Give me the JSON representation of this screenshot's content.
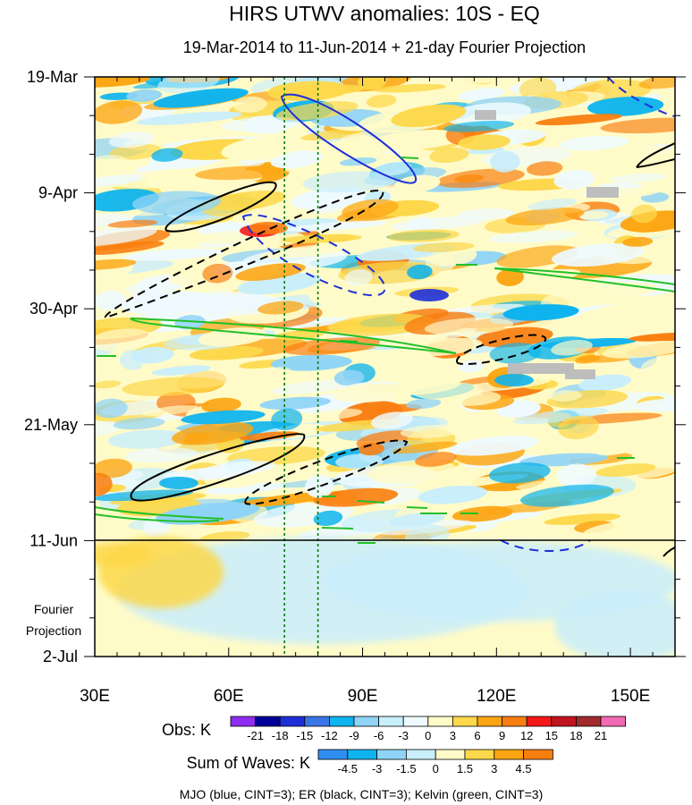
{
  "chart_data": {
    "type": "heatmap",
    "title": "HIRS UTWV anomalies: 10S - EQ",
    "subtitle": "19-Mar-2014 to 11-Jun-2014 + 21-day Fourier Projection",
    "x_ticks": [
      {
        "value": 30,
        "label": "30E"
      },
      {
        "value": 60,
        "label": "60E"
      },
      {
        "value": 90,
        "label": "90E"
      },
      {
        "value": 120,
        "label": "120E"
      },
      {
        "value": 150,
        "label": "150E"
      }
    ],
    "x_range": [
      30,
      160
    ],
    "y_ticks": [
      {
        "value": 0,
        "label": "19-Mar"
      },
      {
        "value": 21,
        "label": "9-Apr"
      },
      {
        "value": 42,
        "label": "30-Apr"
      },
      {
        "value": 63,
        "label": "21-May"
      },
      {
        "value": 84,
        "label": "11-Jun"
      },
      {
        "value": 105,
        "label": "2-Jul"
      }
    ],
    "y_range_days": [
      0,
      105
    ],
    "projection_label": [
      "Fourier",
      "Projection"
    ],
    "projection_start_day": 84,
    "reference_lines_lon": [
      72.5,
      80
    ],
    "obs_colorbar": {
      "label": "Obs: K",
      "levels": [
        -21,
        -18,
        -15,
        -12,
        -9,
        -6,
        -3,
        0,
        3,
        6,
        9,
        12,
        15,
        18,
        21
      ],
      "colors": [
        "#8f2cf0",
        "#000099",
        "#1f2fd8",
        "#3a75e6",
        "#0fb4ee",
        "#8fd3f7",
        "#c9eefc",
        "#eefaff",
        "#fffbc8",
        "#fdd84a",
        "#fca512",
        "#f97e10",
        "#f51818",
        "#c0151f",
        "#a12a2a",
        "#f26ab3"
      ]
    },
    "waves_colorbar": {
      "label": "Sum of Waves: K",
      "levels": [
        -4.5,
        -3,
        -1.5,
        0,
        1.5,
        3,
        4.5
      ],
      "colors": [
        "#2f8ff0",
        "#0fb4ee",
        "#8fd3f7",
        "#c9eefc",
        "#fffbc8",
        "#fdd84a",
        "#fca512",
        "#f97e10"
      ]
    },
    "contour_legend": "MJO (blue, CINT=3); ER (black, CINT=3); Kelvin (green, CINT=3)"
  }
}
